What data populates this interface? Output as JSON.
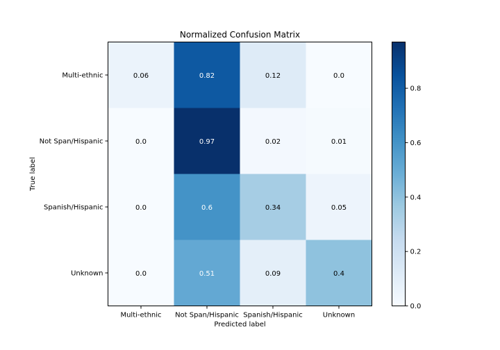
{
  "chart_data": {
    "type": "heatmap",
    "title": "Normalized Confusion Matrix",
    "xlabel": "Predicted label",
    "ylabel": "True label",
    "x_categories": [
      "Multi-ethnic",
      "Not Span/Hispanic",
      "Spanish/Hispanic",
      "Unknown"
    ],
    "y_categories": [
      "Multi-ethnic",
      "Not Span/Hispanic",
      "Spanish/Hispanic",
      "Unknown"
    ],
    "cell_labels": [
      [
        "0.06",
        "0.82",
        "0.12",
        "0.0"
      ],
      [
        "0.0",
        "0.97",
        "0.02",
        "0.01"
      ],
      [
        "0.0",
        "0.6",
        "0.34",
        "0.05"
      ],
      [
        "0.0",
        "0.51",
        "0.09",
        "0.4"
      ]
    ],
    "values": [
      [
        0.06,
        0.82,
        0.12,
        0.0
      ],
      [
        0.0,
        0.97,
        0.02,
        0.01
      ],
      [
        0.0,
        0.6,
        0.34,
        0.05
      ],
      [
        0.0,
        0.51,
        0.09,
        0.4
      ]
    ],
    "colormap": "Blues",
    "color_range": [
      0.0,
      0.97
    ],
    "colorbar": {
      "ticks": [
        0.0,
        0.2,
        0.4,
        0.6,
        0.8
      ],
      "tick_labels": [
        "0.0",
        "0.2",
        "0.4",
        "0.6",
        "0.8"
      ]
    },
    "text_color_light": "#ffffff",
    "text_color_dark": "#000000"
  }
}
